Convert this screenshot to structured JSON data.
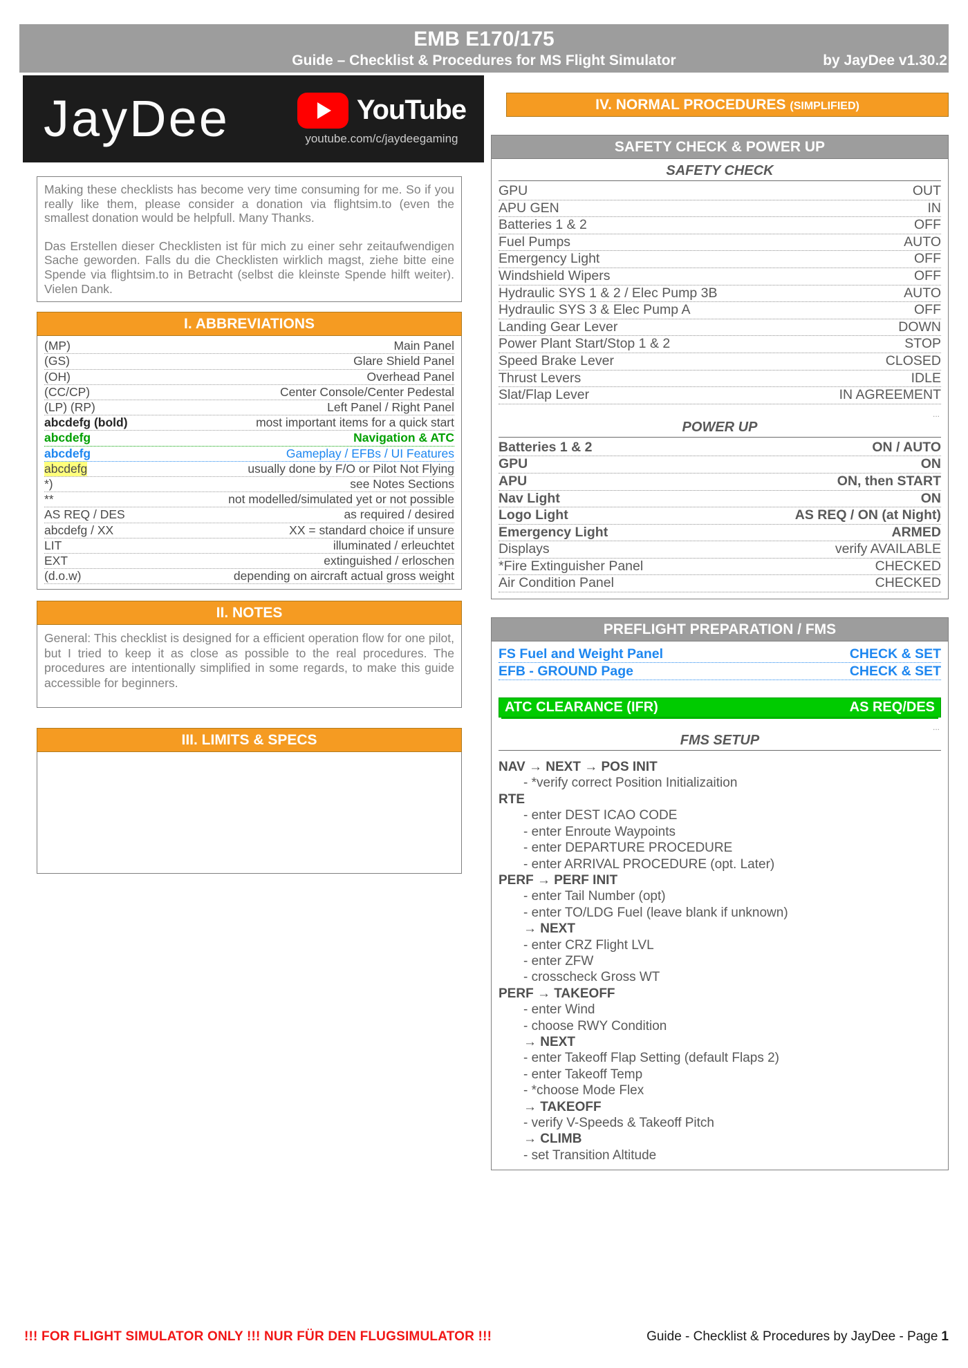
{
  "header": {
    "title": "EMB E170/175",
    "subtitle": "Guide – Checklist & Procedures for MS Flight Simulator",
    "version": "by JayDee v1.30.2"
  },
  "branding": {
    "logo_text": "JayDee",
    "youtube_label": "YouTube",
    "youtube_url": "youtube.com/c/jaydeegaming"
  },
  "donation": {
    "en": "Making these checklists has become very time consuming for me. So if you really like them, please consider a donation via flightsim.to (even the smallest donation would be helpfull. Many Thanks.",
    "de": "Das Erstellen dieser Checklisten ist für mich zu einer sehr zeitaufwendigen Sache geworden. Falls du die Checklisten wirklich magst, ziehe bitte eine Spende via flightsim.to in Betracht (selbst die kleinste Spende hilft weiter). Vielen Dank."
  },
  "abbreviations": {
    "title": "I. ABBREVIATIONS",
    "rows": [
      {
        "left": "(MP)",
        "right": "Main Panel",
        "style": "normal"
      },
      {
        "left": "(GS)",
        "right": "Glare Shield Panel",
        "style": "normal"
      },
      {
        "left": "(OH)",
        "right": "Overhead Panel",
        "style": "normal"
      },
      {
        "left": "(CC/CP)",
        "right": "Center Console/Center Pedestal",
        "style": "normal"
      },
      {
        "left": "(LP) (RP)",
        "right": "Left Panel / Right Panel",
        "style": "normal"
      },
      {
        "left": "abcdefg (bold)",
        "right": "most important items for a quick start",
        "style": "bold"
      },
      {
        "left": "abcdefg",
        "right": "Navigation & ATC",
        "style": "green"
      },
      {
        "left": "abcdefg",
        "right": "Gameplay / EFBs / UI Features",
        "style": "blue"
      },
      {
        "left": "abcdefg",
        "right": "usually done by F/O or Pilot Not Flying",
        "style": "highlight"
      },
      {
        "left": "*)",
        "right": "see Notes Sections",
        "style": "normal"
      },
      {
        "left": "**",
        "right": "not modelled/simulated yet or not possible",
        "style": "normal"
      },
      {
        "left": "AS REQ / DES",
        "right": "as required / desired",
        "style": "normal"
      },
      {
        "left": "abcdefg / XX",
        "right": "XX = standard choice if unsure",
        "style": "normal"
      },
      {
        "left": "LIT",
        "right": "illuminated / erleuchtet",
        "style": "normal"
      },
      {
        "left": "EXT",
        "right": "extinguished / erloschen",
        "style": "normal"
      },
      {
        "left": "(d.o.w)",
        "right": "depending on aircraft actual gross weight",
        "style": "normal"
      }
    ]
  },
  "notes": {
    "title": "II. NOTES",
    "body": "General: This checklist is designed for a efficient operation flow for one pilot, but I tried to keep it as close as possible to the real procedures. The procedures are intentionally simplified in some regards, to make this guide accessible for beginners."
  },
  "limits": {
    "title": "III. LIMITS & SPECS"
  },
  "normal_procedures": {
    "title": "IV. NORMAL PROCEDURES",
    "title_suffix": "(SIMPLIFIED)"
  },
  "safety_panel": {
    "title": "SAFETY CHECK & POWER UP",
    "ellipsis": "...",
    "safety_check": {
      "heading": "SAFETY CHECK",
      "items": [
        {
          "label": "GPU",
          "value": "OUT",
          "bold": false
        },
        {
          "label": "APU GEN",
          "value": "IN",
          "bold": false
        },
        {
          "label": "Batteries 1 & 2",
          "value": "OFF",
          "bold": false
        },
        {
          "label": "Fuel Pumps",
          "value": "AUTO",
          "bold": false
        },
        {
          "label": "Emergency Light",
          "value": "OFF",
          "bold": false
        },
        {
          "label": "Windshield Wipers",
          "value": "OFF",
          "bold": false
        },
        {
          "label": "Hydraulic SYS 1 & 2 / Elec Pump 3B",
          "value": "AUTO",
          "bold": false
        },
        {
          "label": "Hydraulic SYS 3 & Elec Pump A",
          "value": "OFF",
          "bold": false
        },
        {
          "label": "Landing Gear Lever",
          "value": "DOWN",
          "bold": false
        },
        {
          "label": "Power Plant Start/Stop 1 & 2",
          "value": "STOP",
          "bold": false
        },
        {
          "label": "Speed Brake Lever",
          "value": "CLOSED",
          "bold": false
        },
        {
          "label": "Thrust Levers",
          "value": "IDLE",
          "bold": false
        },
        {
          "label": "Slat/Flap Lever",
          "value": "IN AGREEMENT",
          "bold": false
        }
      ]
    },
    "power_up": {
      "heading": "POWER UP",
      "items": [
        {
          "label": "Batteries  1 & 2",
          "value": "ON / AUTO",
          "bold": true
        },
        {
          "label": "GPU",
          "value": "ON",
          "bold": true
        },
        {
          "label": "APU",
          "value": "ON, then START",
          "bold": true
        },
        {
          "label": "Nav Light",
          "value": "ON",
          "bold": true
        },
        {
          "label": "Logo Light",
          "value": "AS REQ / ON (at Night)",
          "bold": true
        },
        {
          "label": "Emergency Light",
          "value": "ARMED",
          "bold": true
        },
        {
          "label": "Displays",
          "value": "verify AVAILABLE",
          "bold": false
        },
        {
          "label": "*Fire Extinguisher Panel",
          "value": "CHECKED",
          "bold": false
        },
        {
          "label": "Air Condition Panel",
          "value": "CHECKED",
          "bold": false
        }
      ]
    }
  },
  "preflight_panel": {
    "title": "PREFLIGHT PREPARATION / FMS",
    "ellipsis": "...",
    "links": [
      {
        "label": "FS Fuel and Weight Panel",
        "value": "CHECK & SET"
      },
      {
        "label": "EFB - GROUND Page",
        "value": "CHECK & SET"
      }
    ],
    "atc": {
      "label": "ATC CLEARANCE (IFR)",
      "value": "AS REQ/DES"
    },
    "fms": {
      "heading": "FMS SETUP",
      "lines": [
        {
          "text": "NAV → NEXT → POS INIT",
          "bold": true,
          "indent": 0
        },
        {
          "text": "- *verify correct Position Initializaition",
          "bold": false,
          "indent": 1
        },
        {
          "text": "RTE",
          "bold": true,
          "indent": 0
        },
        {
          "text": "- enter DEST ICAO CODE",
          "bold": false,
          "indent": 1
        },
        {
          "text": "- enter Enroute Waypoints",
          "bold": false,
          "indent": 1
        },
        {
          "text": "- enter DEPARTURE PROCEDURE",
          "bold": false,
          "indent": 1
        },
        {
          "text": "- enter ARRIVAL PROCEDURE (opt. Later)",
          "bold": false,
          "indent": 1
        },
        {
          "text": "PERF → PERF INIT",
          "bold": true,
          "indent": 0
        },
        {
          "text": "- enter Tail Number (opt)",
          "bold": false,
          "indent": 1
        },
        {
          "text": "- enter TO/LDG Fuel (leave blank if unknown)",
          "bold": false,
          "indent": 1
        },
        {
          "text": "→ NEXT",
          "bold": true,
          "indent": 1
        },
        {
          "text": "- enter CRZ Flight LVL",
          "bold": false,
          "indent": 1
        },
        {
          "text": "- enter ZFW",
          "bold": false,
          "indent": 1
        },
        {
          "text": "- crosscheck Gross WT",
          "bold": false,
          "indent": 1
        },
        {
          "text": "PERF → TAKEOFF",
          "bold": true,
          "indent": 0
        },
        {
          "text": "- enter Wind",
          "bold": false,
          "indent": 1
        },
        {
          "text": "- choose RWY Condition",
          "bold": false,
          "indent": 1
        },
        {
          "text": "→ NEXT",
          "bold": true,
          "indent": 1
        },
        {
          "text": "- enter Takeoff Flap Setting (default Flaps 2)",
          "bold": false,
          "indent": 1
        },
        {
          "text": "- enter Takeoff Temp",
          "bold": false,
          "indent": 1
        },
        {
          "text": "- *choose Mode Flex",
          "bold": false,
          "indent": 1
        },
        {
          "text": "→ TAKEOFF",
          "bold": true,
          "indent": 1
        },
        {
          "text": "- verify V-Speeds & Takeoff Pitch",
          "bold": false,
          "indent": 1
        },
        {
          "text": "→ CLIMB",
          "bold": true,
          "indent": 1
        },
        {
          "text": "- set Transition Altitude",
          "bold": false,
          "indent": 1
        }
      ]
    }
  },
  "footer": {
    "warning": "!!!    FOR FLIGHT SIMULATOR ONLY  !!!  NUR FÜR DEN FLUGSIMULATOR   !!!",
    "page_label": "Guide - Checklist & Procedures by JayDee - Page",
    "page_number": "1"
  },
  "colors": {
    "accent_orange": "#f59b22",
    "bar_gray": "#9d9d9d",
    "link_blue": "#1e87f0",
    "nav_green": "#00a000",
    "atc_green": "#00cb00",
    "highlight_yellow": "#ffff7d",
    "warning_red": "#f11616",
    "text_gray": "#595959"
  }
}
